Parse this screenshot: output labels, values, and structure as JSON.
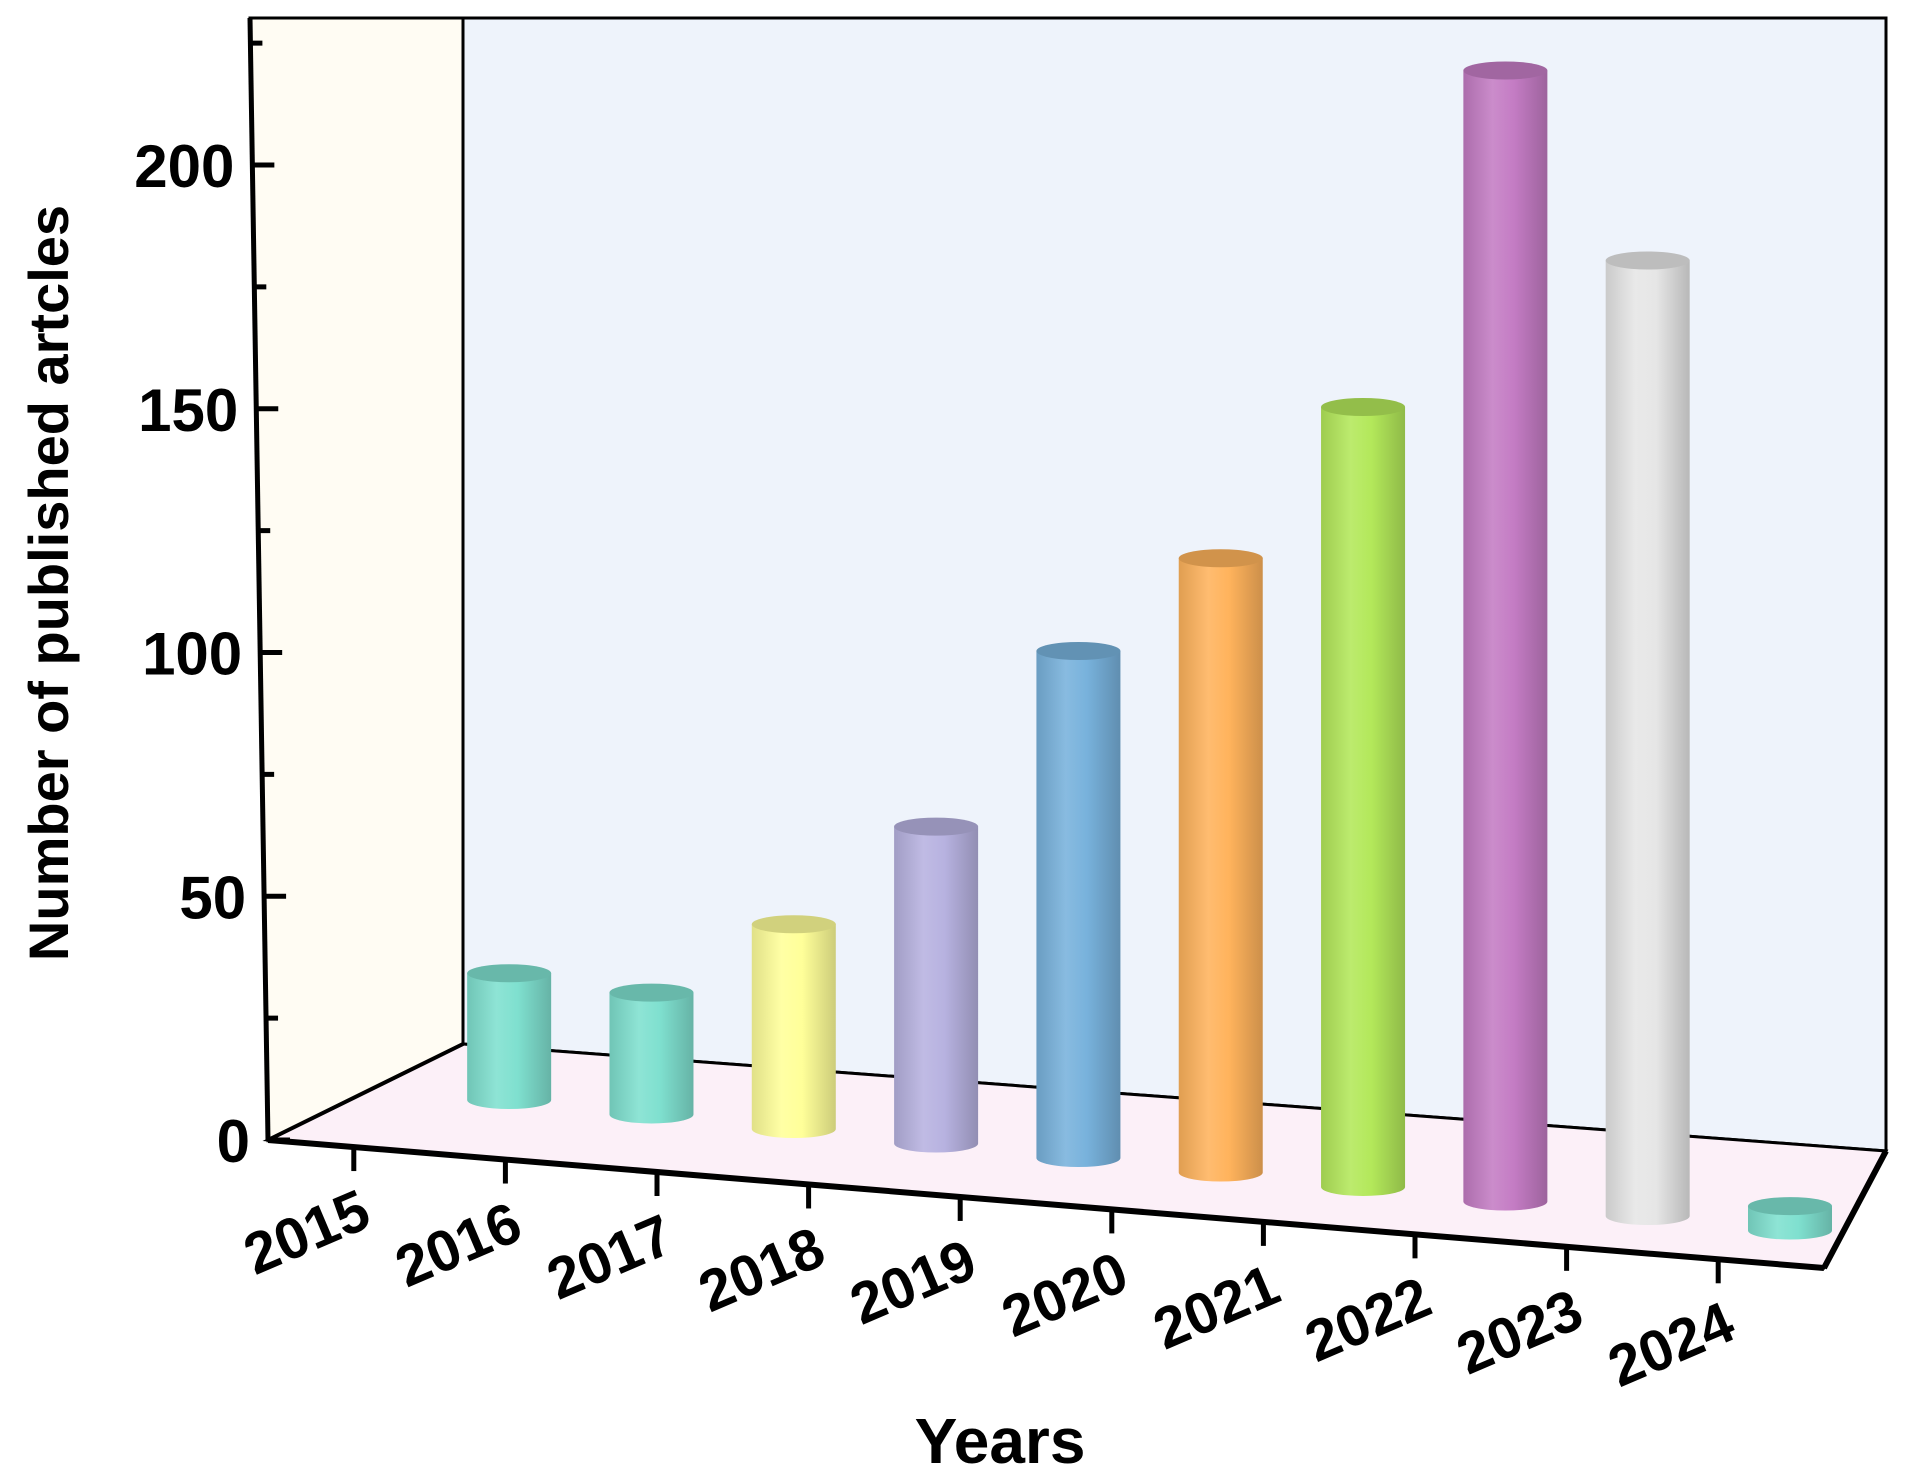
{
  "chart_data": {
    "type": "bar",
    "style": "3d-cylinder",
    "title": "",
    "xlabel": "Years",
    "ylabel": "Number of published artcles",
    "ylim": [
      0,
      225
    ],
    "yticks": [
      0,
      50,
      100,
      150,
      200
    ],
    "categories": [
      "2015",
      "2016",
      "2017",
      "2018",
      "2019",
      "2020",
      "2021",
      "2022",
      "2023",
      "2024"
    ],
    "values": [
      26,
      25,
      42,
      65,
      104,
      126,
      160,
      232,
      196,
      5
    ],
    "colors": [
      "#7fe0cf",
      "#7fe0cf",
      "#ffff99",
      "#b7b2e0",
      "#78b2dc",
      "#ffb35c",
      "#b3e85a",
      "#c47cc4",
      "#e6e6e6",
      "#7fe0cf"
    ],
    "legend": "none",
    "grid": false,
    "wall_colors": {
      "side_wall": "#fffcf3",
      "back_wall": "#eef3fb",
      "floor": "#fcf0f8"
    }
  }
}
